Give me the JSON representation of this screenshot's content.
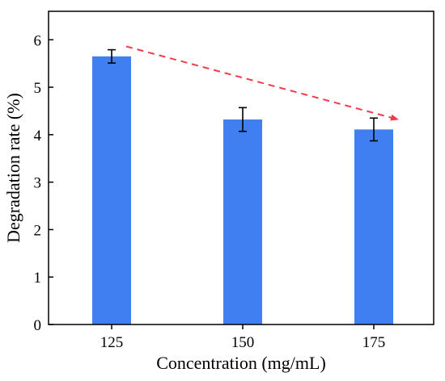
{
  "chart_data": {
    "type": "bar",
    "categories": [
      "125",
      "150",
      "175"
    ],
    "values": [
      5.65,
      4.32,
      4.11
    ],
    "errors": [
      0.14,
      0.25,
      0.24
    ],
    "xlabel": "Concentration (mg/mL)",
    "ylabel": "Degradation rate (%)",
    "ylim": [
      0,
      6.6
    ],
    "yticks": [
      "0",
      "1",
      "2",
      "3",
      "4",
      "5",
      "6"
    ],
    "bar_color": "#3f7ff2",
    "trend_arrow": {
      "from": "125",
      "to": "175",
      "color": "#f23a4a",
      "style": "dashed"
    },
    "grid": false,
    "legend": "none"
  }
}
